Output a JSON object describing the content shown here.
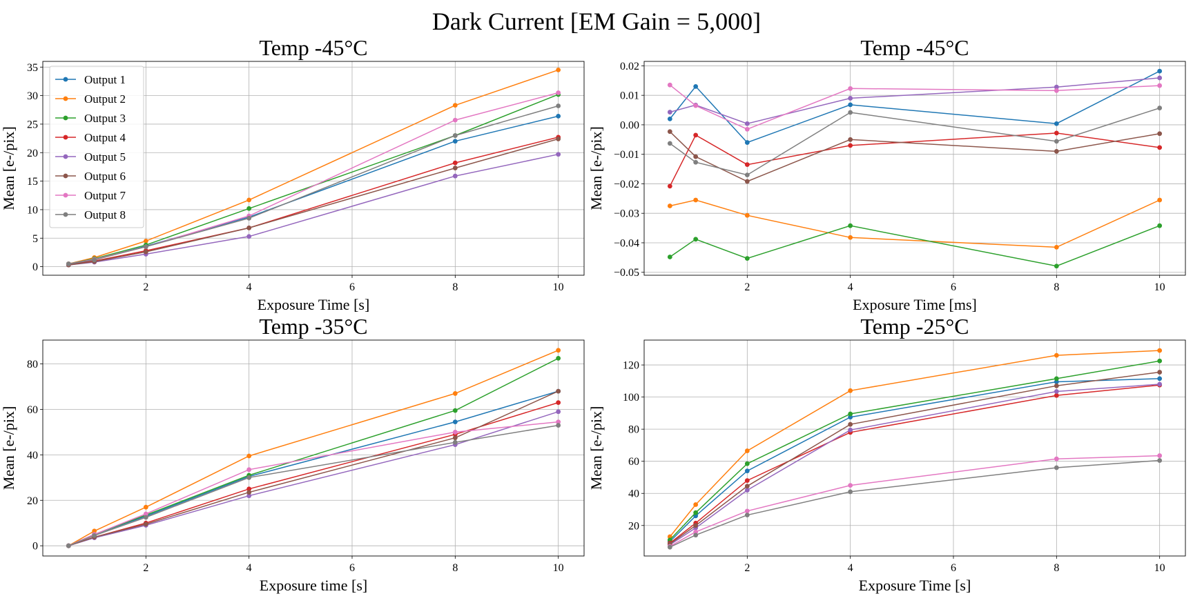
{
  "figure": {
    "title": "Dark Current [EM Gain = 5,000]"
  },
  "chart_data": [
    {
      "type": "line",
      "title": "Temp -45°C",
      "xlabel": "Exposure Time [s]",
      "ylabel": "Mean [e-/pix]",
      "xlim": [
        0.0,
        10.5
      ],
      "ylim": [
        -1.5,
        36
      ],
      "xticks": [
        2,
        4,
        6,
        8,
        10
      ],
      "yticks": [
        0,
        5,
        10,
        15,
        20,
        25,
        30,
        35
      ],
      "grid": true,
      "legend": "upper-left",
      "x": [
        0.5,
        1,
        2,
        4,
        8,
        10
      ],
      "series": [
        {
          "name": "Output 1",
          "color": "#1f77b4",
          "values": [
            0.4,
            1.2,
            3.6,
            8.7,
            22.0,
            26.4
          ]
        },
        {
          "name": "Output 2",
          "color": "#ff7f0e",
          "values": [
            0.5,
            1.6,
            4.5,
            11.7,
            28.3,
            34.5
          ]
        },
        {
          "name": "Output 3",
          "color": "#2ca02c",
          "values": [
            0.5,
            1.4,
            3.8,
            10.2,
            23.0,
            30.2
          ]
        },
        {
          "name": "Output 4",
          "color": "#d62728",
          "values": [
            0.3,
            1.0,
            2.8,
            6.8,
            18.2,
            22.7
          ]
        },
        {
          "name": "Output 5",
          "color": "#9467bd",
          "values": [
            0.3,
            0.8,
            2.2,
            5.3,
            15.9,
            19.7
          ]
        },
        {
          "name": "Output 6",
          "color": "#8c564b",
          "values": [
            0.3,
            0.9,
            2.6,
            6.8,
            17.3,
            22.4
          ]
        },
        {
          "name": "Output 7",
          "color": "#e377c2",
          "values": [
            0.5,
            1.3,
            3.5,
            8.9,
            25.7,
            30.5
          ]
        },
        {
          "name": "Output 8",
          "color": "#7f7f7f",
          "values": [
            0.5,
            1.2,
            3.5,
            8.5,
            23.0,
            28.2
          ]
        }
      ]
    },
    {
      "type": "line",
      "title": "Temp -45°C",
      "xlabel": "Exposure Time [ms]",
      "ylabel": "Mean [e-/pix]",
      "xlim": [
        0.0,
        10.5
      ],
      "ylim": [
        -0.051,
        0.0215
      ],
      "xticks": [
        2,
        4,
        6,
        8,
        10
      ],
      "yticks": [
        -0.05,
        -0.04,
        -0.03,
        -0.02,
        -0.01,
        0.0,
        0.01,
        0.02
      ],
      "yticklabels": [
        "−0.05",
        "−0.04",
        "−0.03",
        "−0.02",
        "−0.01",
        "0.00",
        "0.01",
        "0.02"
      ],
      "grid": true,
      "x": [
        0.5,
        1,
        2,
        4,
        8,
        10
      ],
      "series": [
        {
          "name": "Output 1",
          "color": "#1f77b4",
          "values": [
            0.002,
            0.013,
            -0.006,
            0.0068,
            0.0004,
            0.0182
          ]
        },
        {
          "name": "Output 2",
          "color": "#ff7f0e",
          "values": [
            -0.0275,
            -0.0255,
            -0.0307,
            -0.0382,
            -0.0415,
            -0.0255
          ]
        },
        {
          "name": "Output 3",
          "color": "#2ca02c",
          "values": [
            -0.0448,
            -0.0388,
            -0.0453,
            -0.0342,
            -0.0479,
            -0.0342
          ]
        },
        {
          "name": "Output 4",
          "color": "#d62728",
          "values": [
            -0.0208,
            -0.0035,
            -0.0135,
            -0.007,
            -0.0028,
            -0.0077
          ]
        },
        {
          "name": "Output 5",
          "color": "#9467bd",
          "values": [
            0.0043,
            0.0067,
            0.0004,
            0.009,
            0.0128,
            0.0159
          ]
        },
        {
          "name": "Output 6",
          "color": "#8c564b",
          "values": [
            -0.0023,
            -0.0108,
            -0.0192,
            -0.005,
            -0.009,
            -0.003
          ]
        },
        {
          "name": "Output 7",
          "color": "#e377c2",
          "values": [
            0.0135,
            0.0065,
            -0.0015,
            0.0123,
            0.0116,
            0.0133
          ]
        },
        {
          "name": "Output 8",
          "color": "#7f7f7f",
          "values": [
            -0.0063,
            -0.0127,
            -0.017,
            0.0042,
            -0.0056,
            0.0057
          ]
        }
      ]
    },
    {
      "type": "line",
      "title": "Temp -35°C",
      "xlabel": "Exposure time [s]",
      "ylabel": "Mean [e-/pix]",
      "xlim": [
        0.0,
        10.5
      ],
      "ylim": [
        -4.5,
        90.5
      ],
      "xticks": [
        2,
        4,
        6,
        8,
        10
      ],
      "yticks": [
        0,
        20,
        40,
        60,
        80
      ],
      "grid": true,
      "x": [
        0.5,
        1,
        2,
        4,
        8,
        10
      ],
      "series": [
        {
          "name": "Output 1",
          "color": "#1f77b4",
          "values": [
            0,
            5.0,
            13.0,
            30.5,
            54.5,
            68.0
          ]
        },
        {
          "name": "Output 2",
          "color": "#ff7f0e",
          "values": [
            0,
            6.5,
            17.0,
            39.5,
            67.0,
            86.0
          ]
        },
        {
          "name": "Output 3",
          "color": "#2ca02c",
          "values": [
            0,
            5.0,
            13.5,
            31.0,
            59.5,
            82.5
          ]
        },
        {
          "name": "Output 4",
          "color": "#d62728",
          "values": [
            0,
            3.8,
            10.0,
            25.0,
            49.0,
            63.0
          ]
        },
        {
          "name": "Output 5",
          "color": "#9467bd",
          "values": [
            0,
            3.5,
            9.0,
            22.0,
            44.5,
            59.0
          ]
        },
        {
          "name": "Output 6",
          "color": "#8c564b",
          "values": [
            0,
            3.8,
            9.5,
            23.5,
            47.5,
            68.0
          ]
        },
        {
          "name": "Output 7",
          "color": "#e377c2",
          "values": [
            0,
            5.0,
            14.0,
            33.5,
            50.0,
            54.5
          ]
        },
        {
          "name": "Output 8",
          "color": "#7f7f7f",
          "values": [
            0,
            4.5,
            12.5,
            30.0,
            45.5,
            53.0
          ]
        }
      ]
    },
    {
      "type": "line",
      "title": "Temp -25°C",
      "xlabel": "Exposure Time [s]",
      "ylabel": "Mean [e-/pix]",
      "xlim": [
        0.0,
        10.5
      ],
      "ylim": [
        1,
        135.5
      ],
      "xticks": [
        2,
        4,
        6,
        8,
        10
      ],
      "yticks": [
        20,
        40,
        60,
        80,
        100,
        120
      ],
      "grid": true,
      "x": [
        0.5,
        1,
        2,
        4,
        8,
        10
      ],
      "series": [
        {
          "name": "Output 1",
          "color": "#1f77b4",
          "values": [
            10,
            26,
            54,
            87.5,
            109.5,
            111.5
          ]
        },
        {
          "name": "Output 2",
          "color": "#ff7f0e",
          "values": [
            13,
            33,
            66.5,
            104,
            126,
            129
          ]
        },
        {
          "name": "Output 3",
          "color": "#2ca02c",
          "values": [
            11,
            28,
            58.5,
            89.5,
            111.5,
            122.5
          ]
        },
        {
          "name": "Output 4",
          "color": "#d62728",
          "values": [
            9,
            21.5,
            48,
            78,
            101,
            107.5
          ]
        },
        {
          "name": "Output 5",
          "color": "#9467bd",
          "values": [
            8,
            18.5,
            42,
            79.5,
            103.5,
            108
          ]
        },
        {
          "name": "Output 6",
          "color": "#8c564b",
          "values": [
            8.5,
            20,
            44.5,
            83,
            107,
            115.5
          ]
        },
        {
          "name": "Output 7",
          "color": "#e377c2",
          "values": [
            7,
            16,
            29,
            45,
            61.5,
            63.5
          ]
        },
        {
          "name": "Output 8",
          "color": "#7f7f7f",
          "values": [
            6.5,
            14,
            26.5,
            41,
            56,
            60.5
          ]
        }
      ]
    }
  ]
}
